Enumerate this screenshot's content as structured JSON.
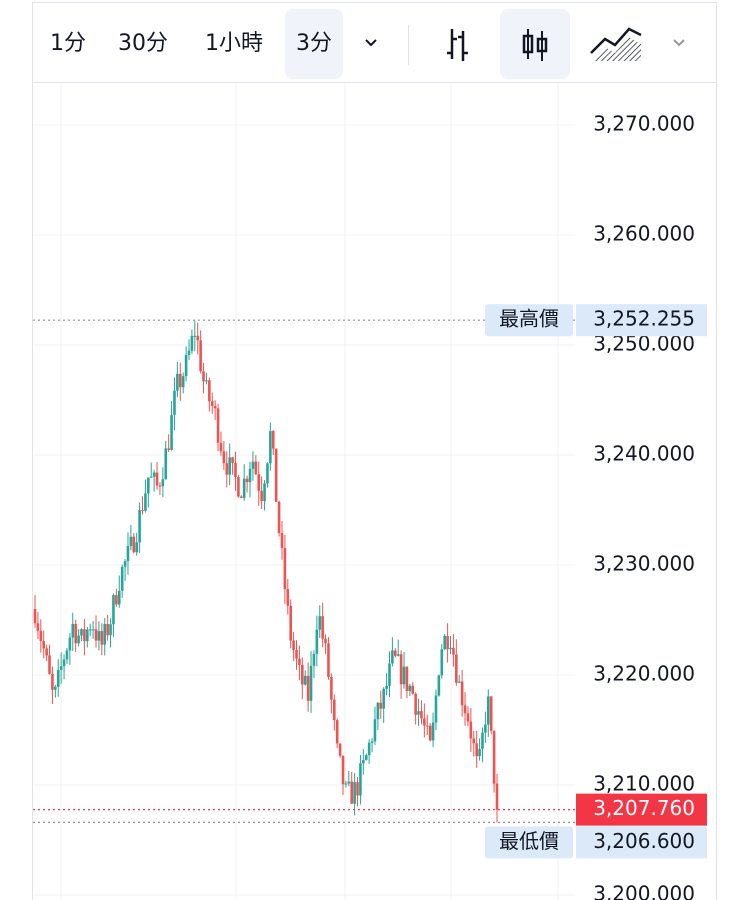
{
  "toolbar": {
    "timeframes": [
      "1分",
      "30分",
      "1小時",
      "3分"
    ],
    "active_timeframe": "3分"
  },
  "price_axis": {
    "ticks": [
      "3,270.000",
      "3,260.000",
      "3,250.000",
      "3,240.000",
      "3,230.000",
      "3,220.000",
      "3,210.000",
      "3,200.000"
    ],
    "high_label": "最高價",
    "high_value": "3,252.255",
    "low_label": "最低價",
    "low_value": "3,206.600",
    "last_value": "3,207.760"
  },
  "colors": {
    "up": "#26a69a",
    "down": "#ef5350",
    "last_badge": "#f23645",
    "label_bg": "#dbe9f9",
    "grid": "#eef0f3"
  },
  "chart_data": {
    "type": "candlestick",
    "ylim": [
      3200,
      3272
    ],
    "high": 3252.255,
    "low": 3206.6,
    "last": 3207.76,
    "grid": true,
    "close_path": [
      3226.0,
      3222.0,
      3217.5,
      3221.5,
      3224.5,
      3223.0,
      3225.0,
      3222.5,
      3225.0,
      3229.0,
      3231.0,
      3234.0,
      3238.0,
      3237.0,
      3240.5,
      3246.0,
      3248.0,
      3251.5,
      3246.0,
      3244.0,
      3240.0,
      3238.0,
      3237.0,
      3240.0,
      3236.5,
      3242.0,
      3232.0,
      3224.0,
      3220.0,
      3218.0,
      3226.0,
      3221.0,
      3213.0,
      3209.0,
      3209.5,
      3212.0,
      3215.5,
      3218.0,
      3221.5,
      3220.0,
      3218.5,
      3216.0,
      3213.0,
      3222.5,
      3224.0,
      3219.0,
      3216.0,
      3211.0,
      3218.0,
      3207.76
    ]
  }
}
